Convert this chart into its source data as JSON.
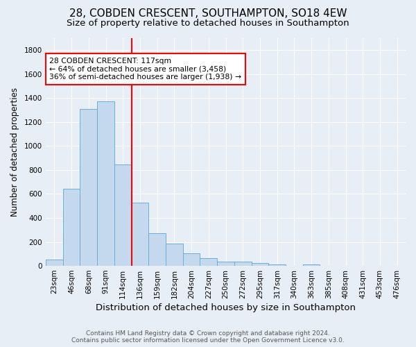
{
  "title": "28, COBDEN CRESCENT, SOUTHAMPTON, SO18 4EW",
  "subtitle": "Size of property relative to detached houses in Southampton",
  "xlabel": "Distribution of detached houses by size in Southampton",
  "ylabel": "Number of detached properties",
  "footer_line1": "Contains HM Land Registry data © Crown copyright and database right 2024.",
  "footer_line2": "Contains public sector information licensed under the Open Government Licence v3.0.",
  "bin_labels": [
    "23sqm",
    "46sqm",
    "68sqm",
    "91sqm",
    "114sqm",
    "136sqm",
    "159sqm",
    "182sqm",
    "204sqm",
    "227sqm",
    "250sqm",
    "272sqm",
    "295sqm",
    "317sqm",
    "340sqm",
    "363sqm",
    "385sqm",
    "408sqm",
    "431sqm",
    "453sqm",
    "476sqm"
  ],
  "bar_values": [
    55,
    645,
    1310,
    1375,
    845,
    530,
    275,
    185,
    105,
    65,
    35,
    35,
    25,
    12,
    0,
    12,
    0,
    0,
    0,
    0,
    0
  ],
  "bar_color": "#c5d9ee",
  "bar_edge_color": "#6aaed6",
  "vline_x": 4,
  "vline_color": "red",
  "annotation_text": "28 COBDEN CRESCENT: 117sqm\n← 64% of detached houses are smaller (3,458)\n36% of semi-detached houses are larger (1,938) →",
  "annotation_box_color": "white",
  "annotation_box_edge_color": "red",
  "ylim": [
    0,
    1900
  ],
  "bg_color": "#e8eef5",
  "plot_bg_color": "#e8eef5",
  "grid_color": "#ffffff",
  "title_fontsize": 11,
  "subtitle_fontsize": 9.5,
  "xlabel_fontsize": 9.5,
  "ylabel_fontsize": 8.5,
  "tick_fontsize": 7.5,
  "footer_fontsize": 6.5
}
